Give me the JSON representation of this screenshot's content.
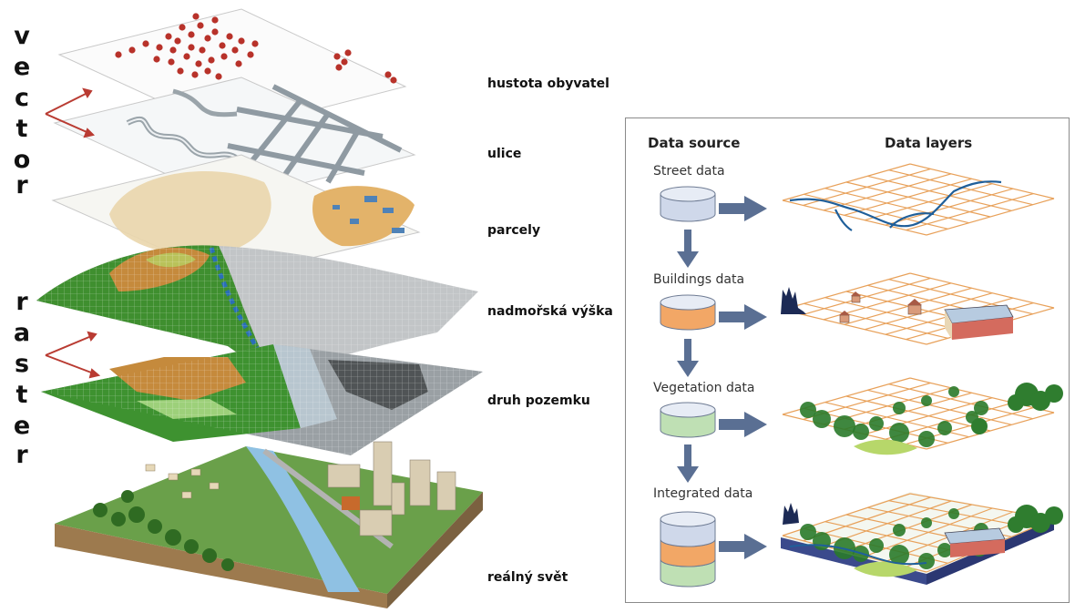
{
  "left": {
    "vector_word": [
      "v",
      "e",
      "c",
      "t",
      "o",
      "r"
    ],
    "raster_word": [
      "r",
      "a",
      "s",
      "t",
      "e",
      "r"
    ],
    "layers": [
      {
        "label": "hustota obyvatel"
      },
      {
        "label": "ulice"
      },
      {
        "label": "parcely"
      },
      {
        "label": "nadmořská výška"
      },
      {
        "label": "druh pozemku"
      },
      {
        "label": "reálný svět"
      }
    ]
  },
  "right": {
    "header_source": "Data source",
    "header_layers": "Data layers",
    "sources": [
      {
        "label": "Street data",
        "color": "#cfd8ea"
      },
      {
        "label": "Buildings data",
        "color": "#f2a766"
      },
      {
        "label": "Vegetation data",
        "color": "#bfe0b4"
      },
      {
        "label": "Integrated data",
        "color": "#cfd8ea"
      }
    ],
    "colors": {
      "arrow": "#5a6f93",
      "grid": "#e8a15a",
      "street": "#1f5f9a",
      "tree": "#2a7a2a"
    }
  }
}
